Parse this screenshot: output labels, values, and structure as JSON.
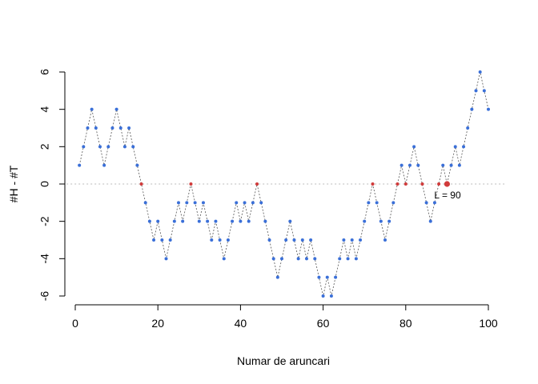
{
  "chart_data": {
    "type": "scatter",
    "title": "",
    "xlabel": "Numar de aruncari",
    "ylabel": "#H - #T",
    "xlim": [
      1,
      100
    ],
    "ylim": [
      -6,
      6
    ],
    "x_ticks": [
      0,
      20,
      40,
      60,
      80,
      100
    ],
    "y_ticks": [
      -6,
      -4,
      -2,
      0,
      2,
      4,
      6
    ],
    "x_tick_labels": [
      "0",
      "20",
      "40",
      "60",
      "80",
      "100"
    ],
    "y_tick_labels": [
      "-6",
      "-4",
      "-2",
      "0",
      "2",
      "4",
      "6"
    ],
    "reference_line_y": 0,
    "grid": false,
    "colors": {
      "points": "#3a6fd8",
      "zero_points": "#d13a3a",
      "path_line": "#555555",
      "reference_line": "#bbbbbb"
    },
    "annotation": {
      "text": "L = 90",
      "x": 90,
      "y": 0
    },
    "highlight_x": 90,
    "x": [
      1,
      2,
      3,
      4,
      5,
      6,
      7,
      8,
      9,
      10,
      11,
      12,
      13,
      14,
      15,
      16,
      17,
      18,
      19,
      20,
      21,
      22,
      23,
      24,
      25,
      26,
      27,
      28,
      29,
      30,
      31,
      32,
      33,
      34,
      35,
      36,
      37,
      38,
      39,
      40,
      41,
      42,
      43,
      44,
      45,
      46,
      47,
      48,
      49,
      50,
      51,
      52,
      53,
      54,
      55,
      56,
      57,
      58,
      59,
      60,
      61,
      62,
      63,
      64,
      65,
      66,
      67,
      68,
      69,
      70,
      71,
      72,
      73,
      74,
      75,
      76,
      77,
      78,
      79,
      80,
      81,
      82,
      83,
      84,
      85,
      86,
      87,
      88,
      89,
      90,
      91,
      92,
      93,
      94,
      95,
      96,
      97,
      98,
      99,
      100
    ],
    "y": [
      1,
      2,
      3,
      4,
      3,
      2,
      1,
      2,
      3,
      4,
      3,
      2,
      3,
      2,
      1,
      0,
      -1,
      -2,
      -3,
      -2,
      -3,
      -4,
      -3,
      -2,
      -1,
      -2,
      -1,
      0,
      -1,
      -2,
      -1,
      -2,
      -3,
      -2,
      -3,
      -4,
      -3,
      -2,
      -1,
      -2,
      -1,
      -2,
      -1,
      0,
      -1,
      -2,
      -3,
      -4,
      -5,
      -4,
      -3,
      -2,
      -3,
      -4,
      -3,
      -4,
      -3,
      -4,
      -5,
      -6,
      -5,
      -6,
      -5,
      -4,
      -3,
      -4,
      -3,
      -4,
      -3,
      -2,
      -1,
      0,
      -1,
      -2,
      -3,
      -2,
      -1,
      0,
      1,
      0,
      1,
      2,
      1,
      0,
      -1,
      -2,
      -1,
      0,
      1,
      0,
      1,
      2,
      1,
      2,
      3,
      4,
      5,
      6,
      5,
      4
    ]
  }
}
